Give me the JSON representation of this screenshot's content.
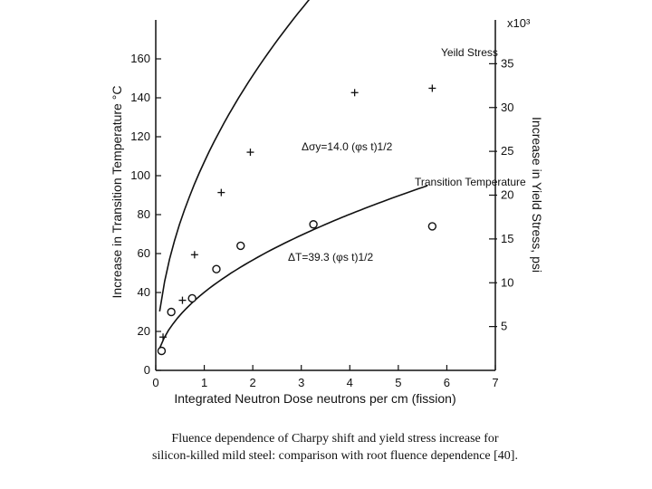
{
  "caption": {
    "line1": "Fluence dependence of Charpy shift and yield stress increase for",
    "line2": "silicon-killed mild steel: comparison with root fluence dependence [40]."
  },
  "chart_data": {
    "type": "scatter",
    "xlabel": "Integrated Neutron Dose neutrons per cm (fission)",
    "ylabel": "Increase in Transition Temperature °C",
    "y2label": "Increase in Yield Stress, psi",
    "y2_multiplier_label": "x10³",
    "xlim": [
      0,
      7
    ],
    "ylim": [
      0,
      180
    ],
    "y2lim": [
      0,
      40
    ],
    "x_ticks": [
      "0",
      "1",
      "2",
      "3",
      "4",
      "5",
      "6",
      "7"
    ],
    "y_ticks": [
      "0",
      "20",
      "40",
      "60",
      "80",
      "100",
      "120",
      "140",
      "160"
    ],
    "y2_ticks": [
      "5",
      "10",
      "15",
      "20",
      "25",
      "30",
      "35"
    ],
    "grid": false,
    "series": [
      {
        "name": "Yeild Stress",
        "axis": "right",
        "marker": "plus",
        "points": [
          [
            0.15,
            3.8
          ],
          [
            0.55,
            8.0
          ],
          [
            0.8,
            13.2
          ],
          [
            1.35,
            20.3
          ],
          [
            1.95,
            24.9
          ],
          [
            4.1,
            31.7
          ],
          [
            5.7,
            32.2
          ]
        ],
        "fit_label": "Δσy=14.0 (φs t)1/2"
      },
      {
        "name": "Transition Temperature",
        "axis": "left",
        "marker": "circle",
        "points": [
          [
            0.12,
            10
          ],
          [
            0.32,
            30
          ],
          [
            0.75,
            37
          ],
          [
            1.25,
            52
          ],
          [
            1.75,
            64
          ],
          [
            3.25,
            75
          ],
          [
            5.7,
            74
          ]
        ],
        "fit_label": "ΔT=39.3 (φs t)1/2"
      }
    ],
    "curves": [
      {
        "name": "Yeild Stress",
        "axis": "right",
        "coef": 14.0,
        "divisor": 1000,
        "x_end": 6.2
      },
      {
        "name": "Transition Temperature",
        "axis": "left",
        "coef": 39.3,
        "divisor": 1,
        "x_end": 5.6
      }
    ]
  }
}
